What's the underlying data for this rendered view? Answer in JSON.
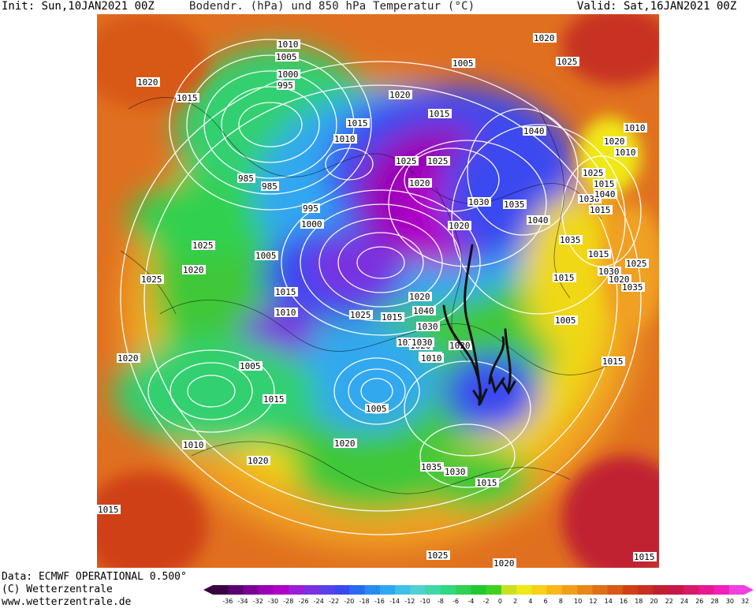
{
  "header": {
    "init": "Init: Sun,10JAN2021 00Z",
    "title": "Bodendr. (hPa) und 850 hPa Temperatur (°C)",
    "valid": "Valid: Sat,16JAN2021 00Z"
  },
  "footer": {
    "data_source": "Data: ECMWF OPERATIONAL 0.500°",
    "copyright": "(C) Wetterzentrale",
    "url": "www.wetterzentrale.de"
  },
  "colorbar": {
    "ticks": [
      "-36",
      "-34",
      "-32",
      "-30",
      "-28",
      "-26",
      "-24",
      "-22",
      "-20",
      "-18",
      "-16",
      "-14",
      "-12",
      "-10",
      "-8",
      "-6",
      "-4",
      "-2",
      "0",
      "2",
      "4",
      "6",
      "8",
      "10",
      "12",
      "14",
      "16",
      "18",
      "20",
      "22",
      "24",
      "26",
      "28",
      "30",
      "32"
    ],
    "colors": [
      "#3a0042",
      "#5a0070",
      "#7a0095",
      "#9a00b5",
      "#b000c8",
      "#9a20d8",
      "#7a30e0",
      "#5a40e8",
      "#3b48f0",
      "#2a6af0",
      "#2a8af0",
      "#30a8f0",
      "#40c0e8",
      "#50d0d0",
      "#40d8a8",
      "#30d880",
      "#30d050",
      "#20c830",
      "#40d020",
      "#c8e020",
      "#f0e818",
      "#f8d018",
      "#f8b818",
      "#f0a018",
      "#e88818",
      "#e07018",
      "#d85818",
      "#d04018",
      "#c83020",
      "#c02030",
      "#c81848",
      "#d81868",
      "#e81890",
      "#f020b8",
      "#f040e0"
    ],
    "unit": "°C"
  },
  "map": {
    "type": "mslp_t850_forecast",
    "model": "ECMWF OPERATIONAL",
    "resolution": "0.500°",
    "isobar_labels": [
      {
        "text": "1010",
        "where": "top-center"
      },
      {
        "text": "1005",
        "where": "top-center"
      },
      {
        "text": "1000",
        "where": "north-atlantic"
      },
      {
        "text": "995",
        "where": "north-atlantic"
      },
      {
        "text": "1020",
        "where": "top-right"
      },
      {
        "text": "1025",
        "where": "top-right"
      },
      {
        "text": "1020",
        "where": "top-left"
      },
      {
        "text": "1015",
        "where": "top-left"
      },
      {
        "text": "1005",
        "where": "top-center"
      },
      {
        "text": "1020",
        "where": "arctic"
      },
      {
        "text": "1015",
        "where": "arctic"
      },
      {
        "text": "1015",
        "where": "arctic"
      },
      {
        "text": "1010",
        "where": "arctic"
      },
      {
        "text": "1040",
        "where": "siberia"
      },
      {
        "text": "1020",
        "where": "east"
      },
      {
        "text": "1010",
        "where": "far-east"
      },
      {
        "text": "1025",
        "where": "east"
      },
      {
        "text": "1030",
        "where": "east"
      },
      {
        "text": "1040",
        "where": "east"
      },
      {
        "text": "1035",
        "where": "east"
      },
      {
        "text": "1015",
        "where": "east"
      },
      {
        "text": "1025",
        "where": "center"
      },
      {
        "text": "1025",
        "where": "center"
      },
      {
        "text": "1020",
        "where": "center"
      },
      {
        "text": "1030",
        "where": "center"
      },
      {
        "text": "1035",
        "where": "siberia"
      },
      {
        "text": "1040",
        "where": "siberia"
      },
      {
        "text": "985",
        "where": "atlantic"
      },
      {
        "text": "985",
        "where": "atlantic"
      },
      {
        "text": "995",
        "where": "atlantic"
      },
      {
        "text": "1000",
        "where": "atlantic"
      },
      {
        "text": "1020",
        "where": "center"
      },
      {
        "text": "1030",
        "where": "east"
      },
      {
        "text": "1025",
        "where": "west"
      },
      {
        "text": "1005",
        "where": "west"
      },
      {
        "text": "1025",
        "where": "west"
      },
      {
        "text": "1020",
        "where": "west"
      },
      {
        "text": "1015",
        "where": "east"
      },
      {
        "text": "1035",
        "where": "east"
      },
      {
        "text": "1025",
        "where": "east"
      },
      {
        "text": "1020",
        "where": "east"
      },
      {
        "text": "1015",
        "where": "west"
      },
      {
        "text": "1020",
        "where": "center"
      },
      {
        "text": "1040",
        "where": "center"
      },
      {
        "text": "1030",
        "where": "center"
      },
      {
        "text": "1035",
        "where": "center"
      },
      {
        "text": "1015",
        "where": "center"
      },
      {
        "text": "1020",
        "where": "center"
      },
      {
        "text": "1005",
        "where": "east"
      },
      {
        "text": "1010",
        "where": "west"
      },
      {
        "text": "1025",
        "where": "center"
      },
      {
        "text": "1020",
        "where": "center"
      },
      {
        "text": "1030",
        "where": "center"
      },
      {
        "text": "1010",
        "where": "east"
      },
      {
        "text": "1015",
        "where": "far-east"
      },
      {
        "text": "1020",
        "where": "left"
      },
      {
        "text": "1005",
        "where": "left"
      },
      {
        "text": "1010",
        "where": "center"
      },
      {
        "text": "1015",
        "where": "east"
      },
      {
        "text": "1015",
        "where": "left"
      },
      {
        "text": "1015",
        "where": "east"
      },
      {
        "text": "1005",
        "where": "pacific"
      },
      {
        "text": "1025",
        "where": "center"
      },
      {
        "text": "1020",
        "where": "lower-center"
      },
      {
        "text": "1010",
        "where": "lower-left"
      },
      {
        "text": "1020",
        "where": "lower-left"
      },
      {
        "text": "1035",
        "where": "lower-center"
      },
      {
        "text": "1030",
        "where": "lower-center"
      },
      {
        "text": "1015",
        "where": "lower-center"
      },
      {
        "text": "1015",
        "where": "bottom-left"
      },
      {
        "text": "1025",
        "where": "bottom"
      },
      {
        "text": "1015",
        "where": "bottom-right"
      },
      {
        "text": "1020",
        "where": "bottom"
      }
    ]
  }
}
